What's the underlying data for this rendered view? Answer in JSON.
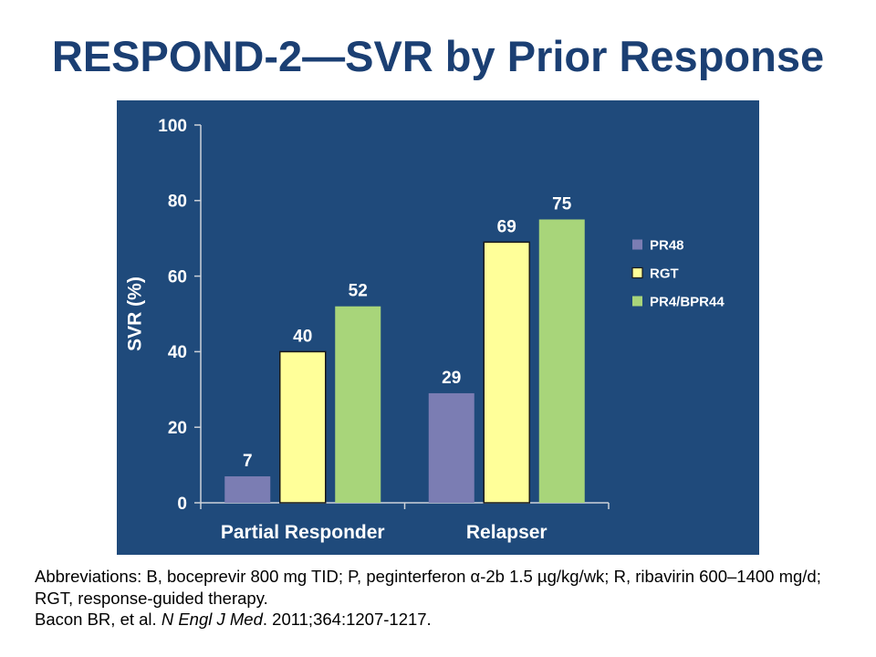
{
  "chart_data": {
    "type": "bar",
    "title": "RESPOND-2—SVR by Prior Response",
    "xlabel": "",
    "ylabel": "SVR (%)",
    "ylim": [
      0,
      100
    ],
    "yticks": [
      0,
      20,
      40,
      60,
      80,
      100
    ],
    "categories": [
      "Partial Responder",
      "Relapser"
    ],
    "series": [
      {
        "name": "PR48",
        "values": [
          7,
          29
        ],
        "color": "#7b7db3"
      },
      {
        "name": "RGT",
        "values": [
          40,
          69
        ],
        "color": "#ffff99",
        "stroke": "#1a1a1a"
      },
      {
        "name": "PR4/BPR44",
        "values": [
          52,
          75
        ],
        "color": "#a8d57a"
      }
    ],
    "data_labels": true,
    "grid": false,
    "legend": "right"
  },
  "colors": {
    "title": "#1b3f73",
    "chart_background": "#1f4a7b",
    "chart_text": "#ffffff",
    "axis": "#cdd2d9"
  },
  "footnotes": {
    "abbreviations": [
      "Abbreviations: B, boceprevir 800 mg TID; P, peginterferon α-2b 1.5 µg/kg/wk; R, ribavirin 600–1400 mg/d;",
      "RGT, response-guided therapy."
    ],
    "citation": {
      "authors": "Bacon BR, et al.",
      "journal": "N Engl J Med",
      "details": ". 2011;364:1207-1217."
    }
  }
}
